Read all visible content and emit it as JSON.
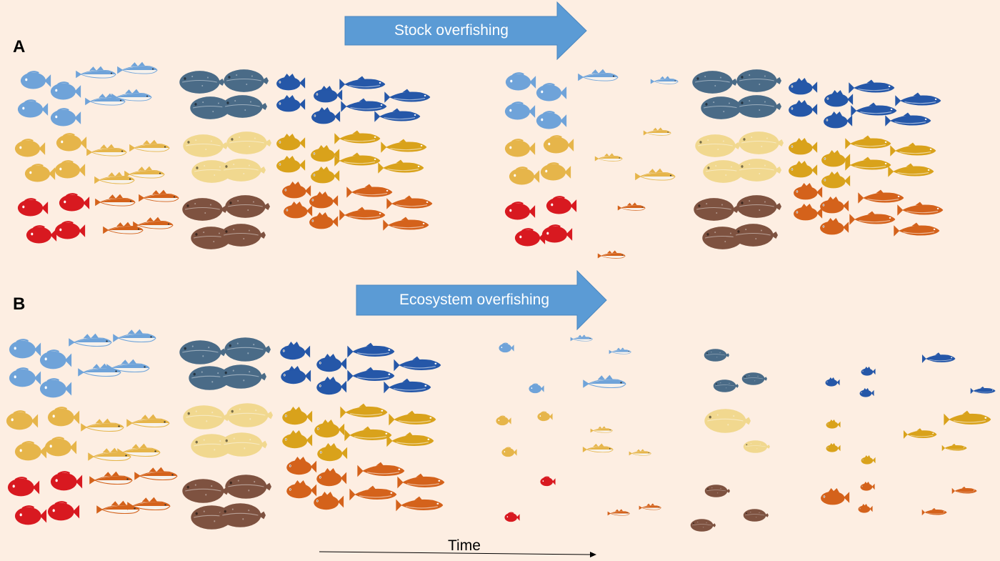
{
  "panel_a": {
    "label": "A",
    "arrow_text": "Stock overfishing"
  },
  "panel_b": {
    "label": "B",
    "arrow_text": "Ecosystem overfishing"
  },
  "time_label": "Time",
  "colors": {
    "background": "#fdeee2",
    "arrow_fill": "#5b9bd5",
    "arrow_text": "#ffffff",
    "blue_light": "#6fa3d9",
    "blue_dark": "#2557a8",
    "slate": "#4a6b87",
    "yellow": "#e6b54a",
    "yellow_dark": "#d9a21b",
    "pale_yellow": "#f1d88f",
    "red": "#d81920",
    "orange": "#d4621b",
    "brown": "#7e5240"
  },
  "icons": [
    "round-fish-icon",
    "cod-fish-icon",
    "flatfish-icon",
    "perch-fish-icon",
    "salmon-fish-icon"
  ]
}
